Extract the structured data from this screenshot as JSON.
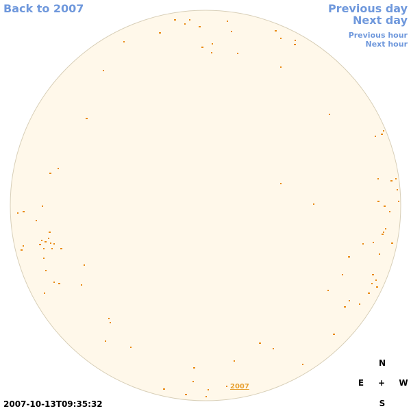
{
  "nav": {
    "back_label": "Back to 2007",
    "previous_day_label": "Previous day",
    "next_day_label": "Next day",
    "previous_hour_label": "Previous hour",
    "next_hour_label": "Next hour"
  },
  "sun": {
    "year_label": "2007",
    "timestamp": "2007-10-13T09:35:32",
    "disk_fill": "#fff8ea",
    "disk_edge": "#d8cfb8",
    "spot_color": "#e98a14"
  },
  "compass": {
    "north": "N",
    "east": "E",
    "center": "+",
    "west": "W",
    "south": "S"
  }
}
